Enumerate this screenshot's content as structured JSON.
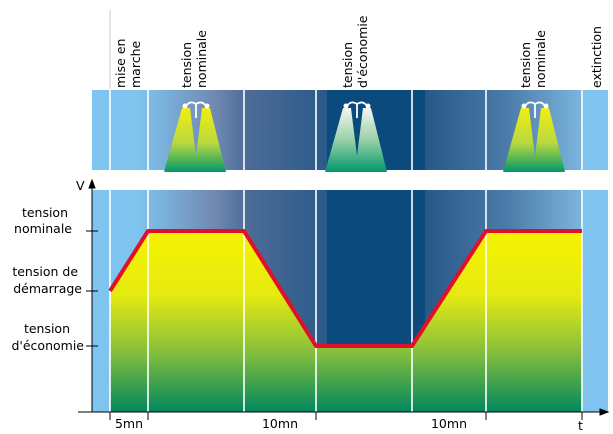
{
  "phases": {
    "start": [
      "mise en",
      "marche"
    ],
    "nominal_1": [
      "tension",
      "nominale"
    ],
    "economy": [
      "tension",
      "d'économie"
    ],
    "nominal_2": [
      "tension",
      "nominale"
    ],
    "off": [
      "extinction"
    ]
  },
  "axes": {
    "y_symbol": "V",
    "x_symbol": "t"
  },
  "levels": {
    "nominal": [
      "tension",
      "nominale"
    ],
    "startup": [
      "tension de",
      "démarrage"
    ],
    "economy": [
      "tension",
      "d'économie"
    ]
  },
  "durations": {
    "d1": "5mn",
    "d2": "10mn",
    "d3": "10mn"
  },
  "colors": {
    "curve": "#e0102a",
    "sky_light": "#7fc4ee",
    "night_dark": "#0a4678",
    "fill_top": "#f4ef00",
    "fill_bottom": "#008a6a"
  }
}
